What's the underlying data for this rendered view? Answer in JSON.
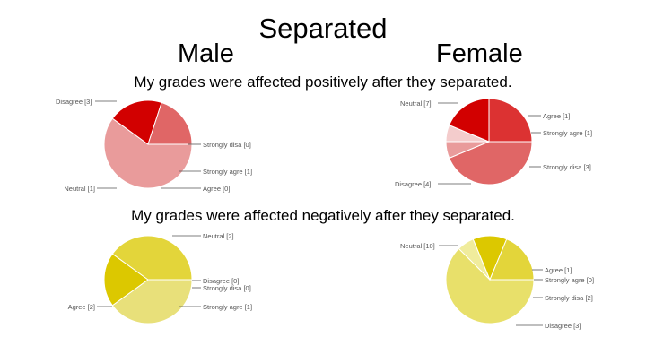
{
  "title": "Separated",
  "headers": {
    "male": "Male",
    "female": "Female"
  },
  "questions": {
    "positive": "My grades were affected positively after they separated.",
    "negative": "My grades were affected negatively after they separated."
  },
  "chart_data": [
    {
      "type": "pie",
      "title": "My grades were affected positively after they separated.",
      "group": "Male",
      "slices": [
        {
          "label": "Disagree [3]",
          "value": 3,
          "color": "#e99b9b"
        },
        {
          "label": "Strongly disa [0]",
          "value": 0,
          "color": "#d20000"
        },
        {
          "label": "Strongly agre [1]",
          "value": 1,
          "color": "#d20000"
        },
        {
          "label": "Agree [0]",
          "value": 0,
          "color": "#e06666"
        },
        {
          "label": "Neutral [1]",
          "value": 1,
          "color": "#e06666"
        }
      ]
    },
    {
      "type": "pie",
      "title": "My grades were affected positively after they separated.",
      "group": "Female",
      "slices": [
        {
          "label": "Neutral [7]",
          "value": 7,
          "color": "#e06666"
        },
        {
          "label": "Agree [1]",
          "value": 1,
          "color": "#e99b9b"
        },
        {
          "label": "Strongly agre [1]",
          "value": 1,
          "color": "#f4cccc"
        },
        {
          "label": "Strongly disa [3]",
          "value": 3,
          "color": "#d20000"
        },
        {
          "label": "Disagree [4]",
          "value": 4,
          "color": "#dc3232"
        }
      ]
    },
    {
      "type": "pie",
      "title": "My grades were affected negatively after they separated.",
      "group": "Male",
      "slices": [
        {
          "label": "Neutral [2]",
          "value": 2,
          "color": "#e8e07a"
        },
        {
          "label": "Disagree [0]",
          "value": 0,
          "color": "#e0d030"
        },
        {
          "label": "Strongly disa [0]",
          "value": 0,
          "color": "#e0d030"
        },
        {
          "label": "Strongly agre [1]",
          "value": 1,
          "color": "#dcc800"
        },
        {
          "label": "Agree [2]",
          "value": 2,
          "color": "#e3d53a"
        }
      ]
    },
    {
      "type": "pie",
      "title": "My grades were affected negatively after they separated.",
      "group": "Female",
      "slices": [
        {
          "label": "Neutral [10]",
          "value": 10,
          "color": "#e8e06a"
        },
        {
          "label": "Agree [1]",
          "value": 1,
          "color": "#f0ec9c"
        },
        {
          "label": "Strongly agre [0]",
          "value": 0,
          "color": "#e0d030"
        },
        {
          "label": "Strongly disa [2]",
          "value": 2,
          "color": "#dcc800"
        },
        {
          "label": "Disagree [3]",
          "value": 3,
          "color": "#e3d53a"
        }
      ]
    }
  ]
}
